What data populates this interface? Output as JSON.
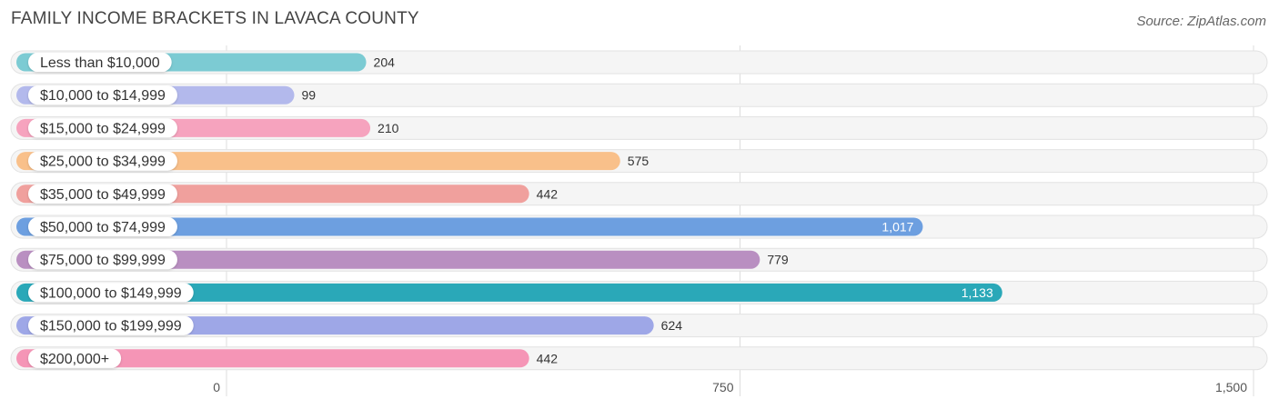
{
  "source": "Source: ZipAtlas.com",
  "chart_data": {
    "type": "bar",
    "orientation": "horizontal",
    "title": "FAMILY INCOME BRACKETS IN LAVACA COUNTY",
    "categories": [
      "Less than $10,000",
      "$10,000 to $14,999",
      "$15,000 to $24,999",
      "$25,000 to $34,999",
      "$35,000 to $49,999",
      "$50,000 to $74,999",
      "$75,000 to $99,999",
      "$100,000 to $149,999",
      "$150,000 to $199,999",
      "$200,000+"
    ],
    "values": [
      204,
      99,
      210,
      575,
      442,
      1017,
      779,
      1133,
      624,
      442
    ],
    "value_labels": [
      "204",
      "99",
      "210",
      "575",
      "442",
      "1,017",
      "779",
      "1,133",
      "624",
      "442"
    ],
    "colors": [
      "#7ccbd3",
      "#b3b9ec",
      "#f6a3be",
      "#f9c08a",
      "#f0a09d",
      "#6d9fe0",
      "#b98fc1",
      "#2aa8b8",
      "#9ea7e7",
      "#f595b6"
    ],
    "xlim": [
      0,
      1500
    ],
    "ticks": [
      0,
      750,
      1500
    ],
    "tick_labels": [
      "0",
      "750",
      "1,500"
    ],
    "xlabel": "",
    "ylabel": "",
    "grid": true,
    "legend": "none"
  }
}
